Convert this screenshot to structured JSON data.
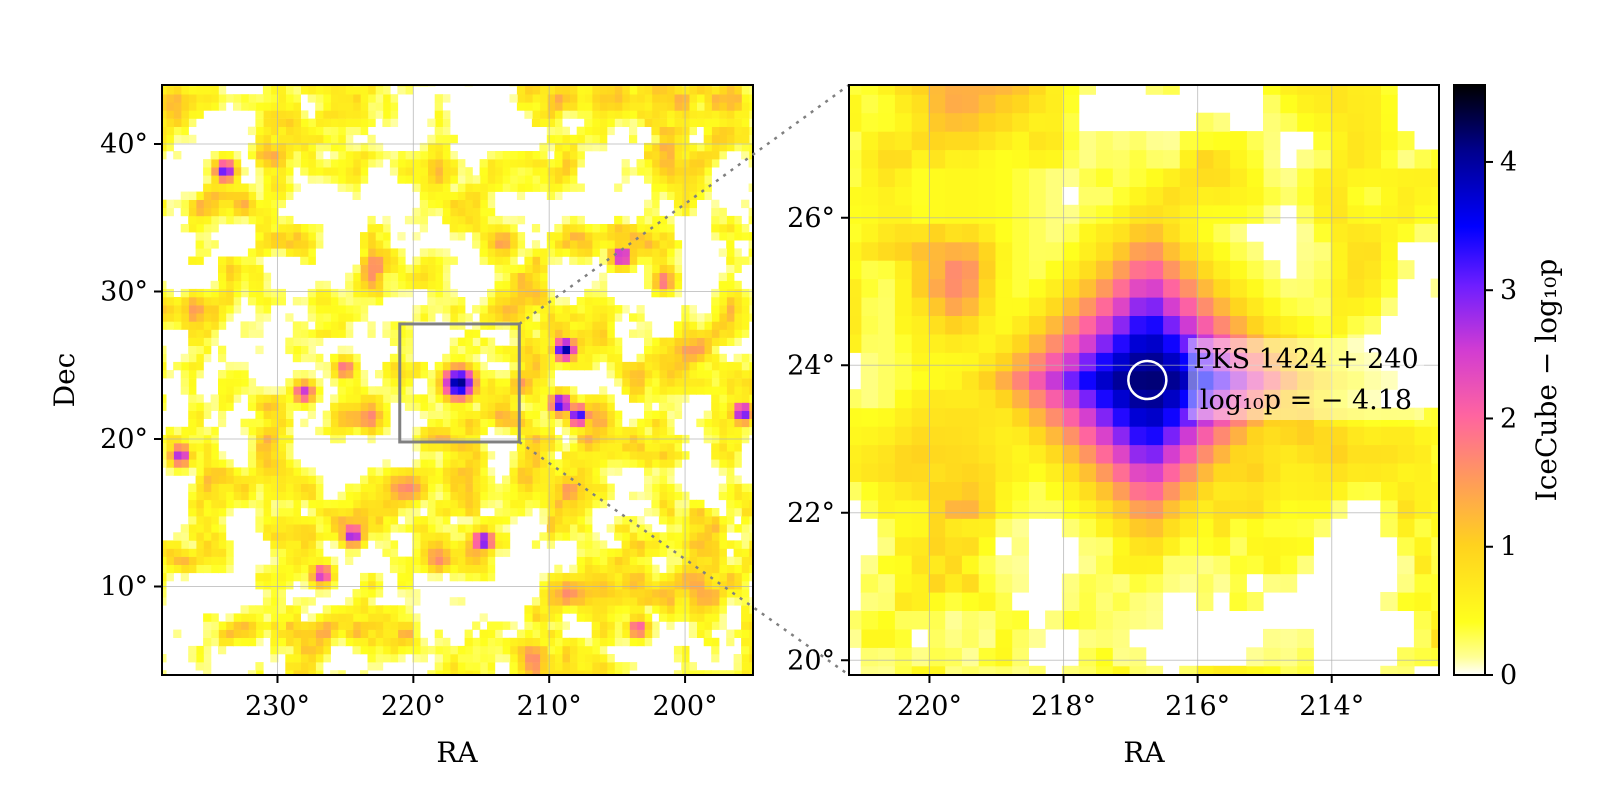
{
  "chart_data": [
    {
      "type": "heatmap",
      "panel": "overview",
      "xlabel": "RA",
      "ylabel": "Dec",
      "xlim": [
        238.5,
        195.0
      ],
      "ylim": [
        4.0,
        44.0
      ],
      "xticks": [
        230,
        220,
        210,
        200
      ],
      "xtick_labels": [
        "230°",
        "220°",
        "210°",
        "200°"
      ],
      "yticks": [
        10,
        20,
        30,
        40
      ],
      "ytick_labels": [
        "10°",
        "20°",
        "30°",
        "40°"
      ],
      "grid": true,
      "zoom_box": {
        "ra": [
          221.0,
          212.2
        ],
        "dec": [
          19.8,
          27.8
        ]
      },
      "hotspots": [
        {
          "ra": 216.7,
          "dec": 23.8,
          "value": 4.18
        },
        {
          "ra": 208.9,
          "dec": 26.1,
          "value": 4.0
        },
        {
          "ra": 209.2,
          "dec": 22.4,
          "value": 3.5
        },
        {
          "ra": 207.9,
          "dec": 21.6,
          "value": 3.4
        },
        {
          "ra": 204.7,
          "dec": 32.4,
          "value": 3.0
        },
        {
          "ra": 233.9,
          "dec": 38.2,
          "value": 3.2
        },
        {
          "ra": 195.8,
          "dec": 21.8,
          "value": 3.2
        },
        {
          "ra": 237.2,
          "dec": 18.9,
          "value": 2.8
        },
        {
          "ra": 228.1,
          "dec": 23.2,
          "value": 2.6
        },
        {
          "ra": 224.5,
          "dec": 13.5,
          "value": 3.0
        },
        {
          "ra": 214.9,
          "dec": 13.1,
          "value": 3.2
        },
        {
          "ra": 226.8,
          "dec": 10.8,
          "value": 2.6
        },
        {
          "ra": 225.1,
          "dec": 24.8,
          "value": 2.0
        },
        {
          "ra": 203.5,
          "dec": 7.2,
          "value": 2.2
        },
        {
          "ra": 201.6,
          "dec": 30.7,
          "value": 2.0
        }
      ]
    },
    {
      "type": "heatmap",
      "panel": "zoom",
      "xlabel": "RA",
      "ylabel": "",
      "xlim": [
        221.2,
        212.4
      ],
      "ylim": [
        19.8,
        27.8
      ],
      "xticks": [
        220,
        218,
        216,
        214
      ],
      "xtick_labels": [
        "220°",
        "218°",
        "216°",
        "214°"
      ],
      "yticks": [
        20,
        22,
        24,
        26
      ],
      "ytick_labels": [
        "20°",
        "22°",
        "24°",
        "26°"
      ],
      "grid": true,
      "source": {
        "name": "PKS 1424 + 240",
        "ra": 216.75,
        "dec": 23.8,
        "log10p": -4.18
      },
      "annotation_lines": [
        "PKS 1424 + 240",
        "log₁₀p = − 4.18"
      ]
    },
    {
      "type": "colorbar",
      "label": "IceCube − log₁₀p",
      "range": [
        0,
        4.6
      ],
      "ticks": [
        0,
        1,
        2,
        3,
        4
      ],
      "tick_labels": [
        "0",
        "1",
        "2",
        "3",
        "4"
      ],
      "colors": [
        "#ffffff",
        "#ffff1e",
        "#ffd21e",
        "#ff9b5a",
        "#ff64a0",
        "#d23cd2",
        "#6e1eff",
        "#0000ff",
        "#00008c",
        "#000000"
      ]
    }
  ]
}
